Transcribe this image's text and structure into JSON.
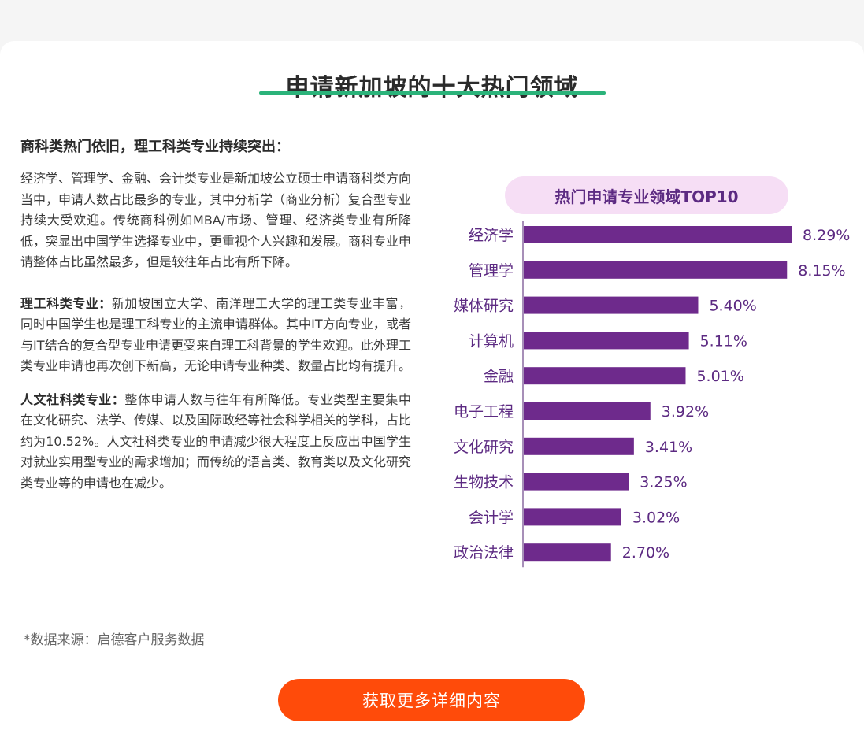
{
  "page": {
    "title": "申请新加坡的十大热门领域",
    "section_heading": "商科类热门依旧，理工科类专业持续突出：",
    "para1": "经济学、管理学、金融、会计类专业是新加坡公立硕士申请商科类方向当中，申请人数占比最多的专业，其中分析学（商业分析）复合型专业持续大受欢迎。传统商科例如MBA/市场、管理、经济类专业有所降低，突显出中国学生选择专业中，更重视个人兴趣和发展。商科专业申请整体占比虽然最多，但是较往年占比有所下降。",
    "para2_lead": "理工科类专业：",
    "para2": "新加坡国立大学、南洋理工大学的理工类专业丰富，同时中国学生也是理工科专业的主流申请群体。其中IT方向专业，或者与IT结合的复合型专业申请更受来自理工科背景的学生欢迎。此外理工类专业申请也再次创下新高，无论申请专业种类、数量占比均有提升。",
    "para3_lead": "人文社科类专业：",
    "para3": "整体申请人数与往年有所降低。专业类型主要集中在文化研究、法学、传媒、以及国际政经等社会科学相关的学科，占比约为10.52%。人文社科类专业的申请减少很大程度上反应出中国学生对就业实用型专业的需求增加；而传统的语言类、教育类以及文化研究类专业等的申请也在减少。",
    "source_note": "*数据来源：启德客户服务数据",
    "cta_label": "获取更多详细内容"
  },
  "colors": {
    "bar": "#6e2a8c",
    "label": "#5c2a82",
    "badge_bg": "#f6def5",
    "underline": "#2bb37a",
    "cta": "#ff4b0a"
  },
  "chart_data": {
    "type": "bar",
    "orientation": "horizontal",
    "title": "热门申请专业领域TOP10",
    "categories": [
      "经济学",
      "管理学",
      "媒体研究",
      "计算机",
      "金融",
      "电子工程",
      "文化研究",
      "生物技术",
      "会计学",
      "政治法律"
    ],
    "values": [
      8.29,
      8.15,
      5.4,
      5.11,
      5.01,
      3.92,
      3.41,
      3.25,
      3.02,
      2.7
    ],
    "value_labels": [
      "8.29%",
      "8.15%",
      "5.40%",
      "5.11%",
      "5.01%",
      "3.92%",
      "3.41%",
      "3.25%",
      "3.02%",
      "2.70%"
    ],
    "unit": "%",
    "xlim": [
      0,
      8.29
    ],
    "grid": false,
    "legend": "none"
  }
}
